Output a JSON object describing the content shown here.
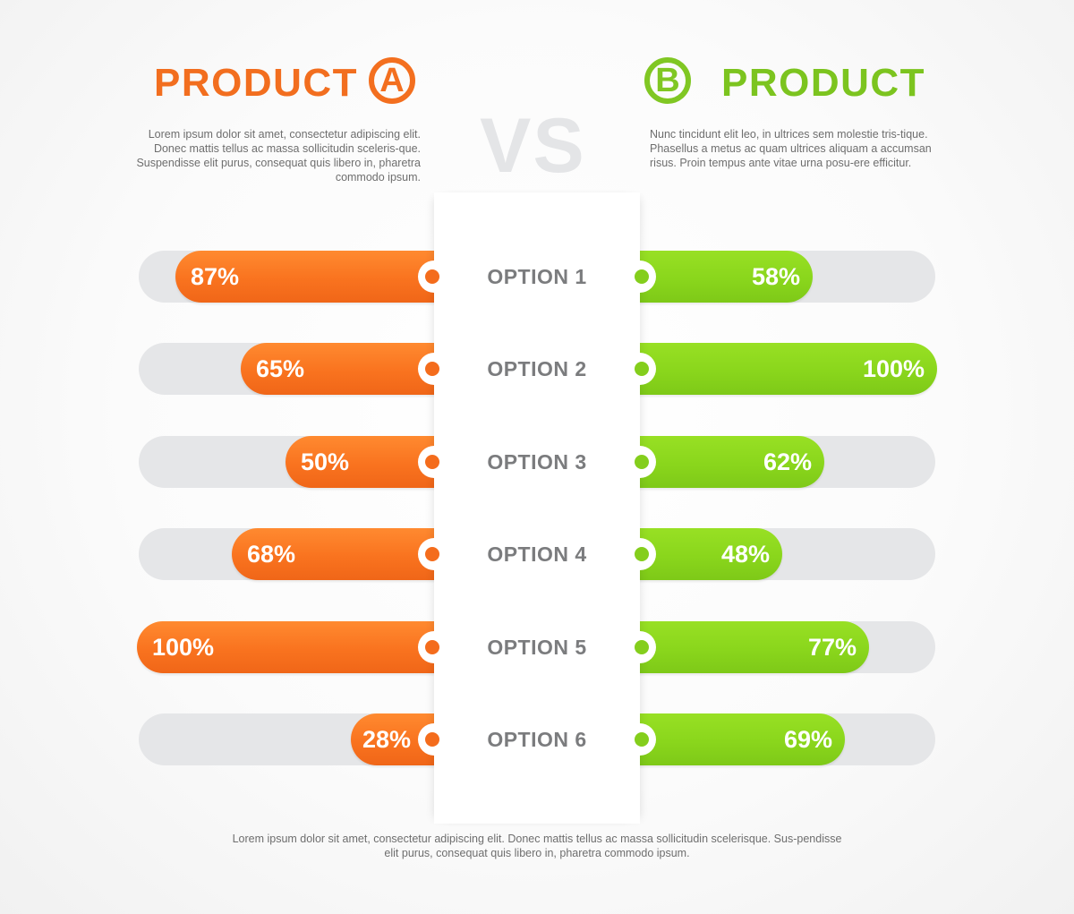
{
  "header": {
    "product_a": {
      "title": "PRODUCT",
      "badge": "A",
      "color": "#f26e1f",
      "description": "Lorem ipsum dolor sit amet, consectetur adipiscing elit. Donec mattis tellus ac massa sollicitudin sceleris-que. Suspendisse elit purus, consequat quis libero in, pharetra commodo ipsum."
    },
    "vs": "VS",
    "product_b": {
      "title": "PRODUCT",
      "badge": "B",
      "color": "#7cc41f",
      "description": "Nunc tincidunt elit leo, in ultrices sem molestie tris-tique. Phasellus a metus ac quam ultrices aliquam a accumsan risus. Proin tempus ante vitae urna posu-ere efficitur."
    }
  },
  "rows": [
    {
      "option": "OPTION 1",
      "a_label": "87%",
      "b_label": "58%"
    },
    {
      "option": "OPTION 2",
      "a_label": "65%",
      "b_label": "100%"
    },
    {
      "option": "OPTION 3",
      "a_label": "50%",
      "b_label": "62%"
    },
    {
      "option": "OPTION 4",
      "a_label": "68%",
      "b_label": "48%"
    },
    {
      "option": "OPTION 5",
      "a_label": "100%",
      "b_label": "77%"
    },
    {
      "option": "OPTION 6",
      "a_label": "28%",
      "b_label": "69%"
    }
  ],
  "footer": "Lorem ipsum dolor sit amet, consectetur adipiscing elit. Donec mattis tellus ac massa sollicitudin scelerisque. Sus-pendisse elit purus, consequat quis libero in, pharetra commodo ipsum.",
  "colors": {
    "product_a": "#f36f1f",
    "product_b": "#84ce1c",
    "track": "#e5e6e8",
    "option_text": "#7b7c7e",
    "vs_text": "#e4e5e7"
  },
  "chart_data": {
    "type": "bar",
    "title": "PRODUCT A VS PRODUCT B",
    "orientation": "horizontal, diverging (A extends left, B extends right)",
    "categories": [
      "OPTION 1",
      "OPTION 2",
      "OPTION 3",
      "OPTION 4",
      "OPTION 5",
      "OPTION 6"
    ],
    "series": [
      {
        "name": "PRODUCT A",
        "color": "#f36f1f",
        "values": [
          87,
          65,
          50,
          68,
          100,
          28
        ]
      },
      {
        "name": "PRODUCT B",
        "color": "#84ce1c",
        "values": [
          58,
          100,
          62,
          48,
          77,
          69
        ]
      }
    ],
    "xlabel": "",
    "ylabel": "",
    "xlim": [
      0,
      100
    ],
    "unit": "%",
    "grid": false,
    "legend": "product titles at top (A left, B right)"
  }
}
